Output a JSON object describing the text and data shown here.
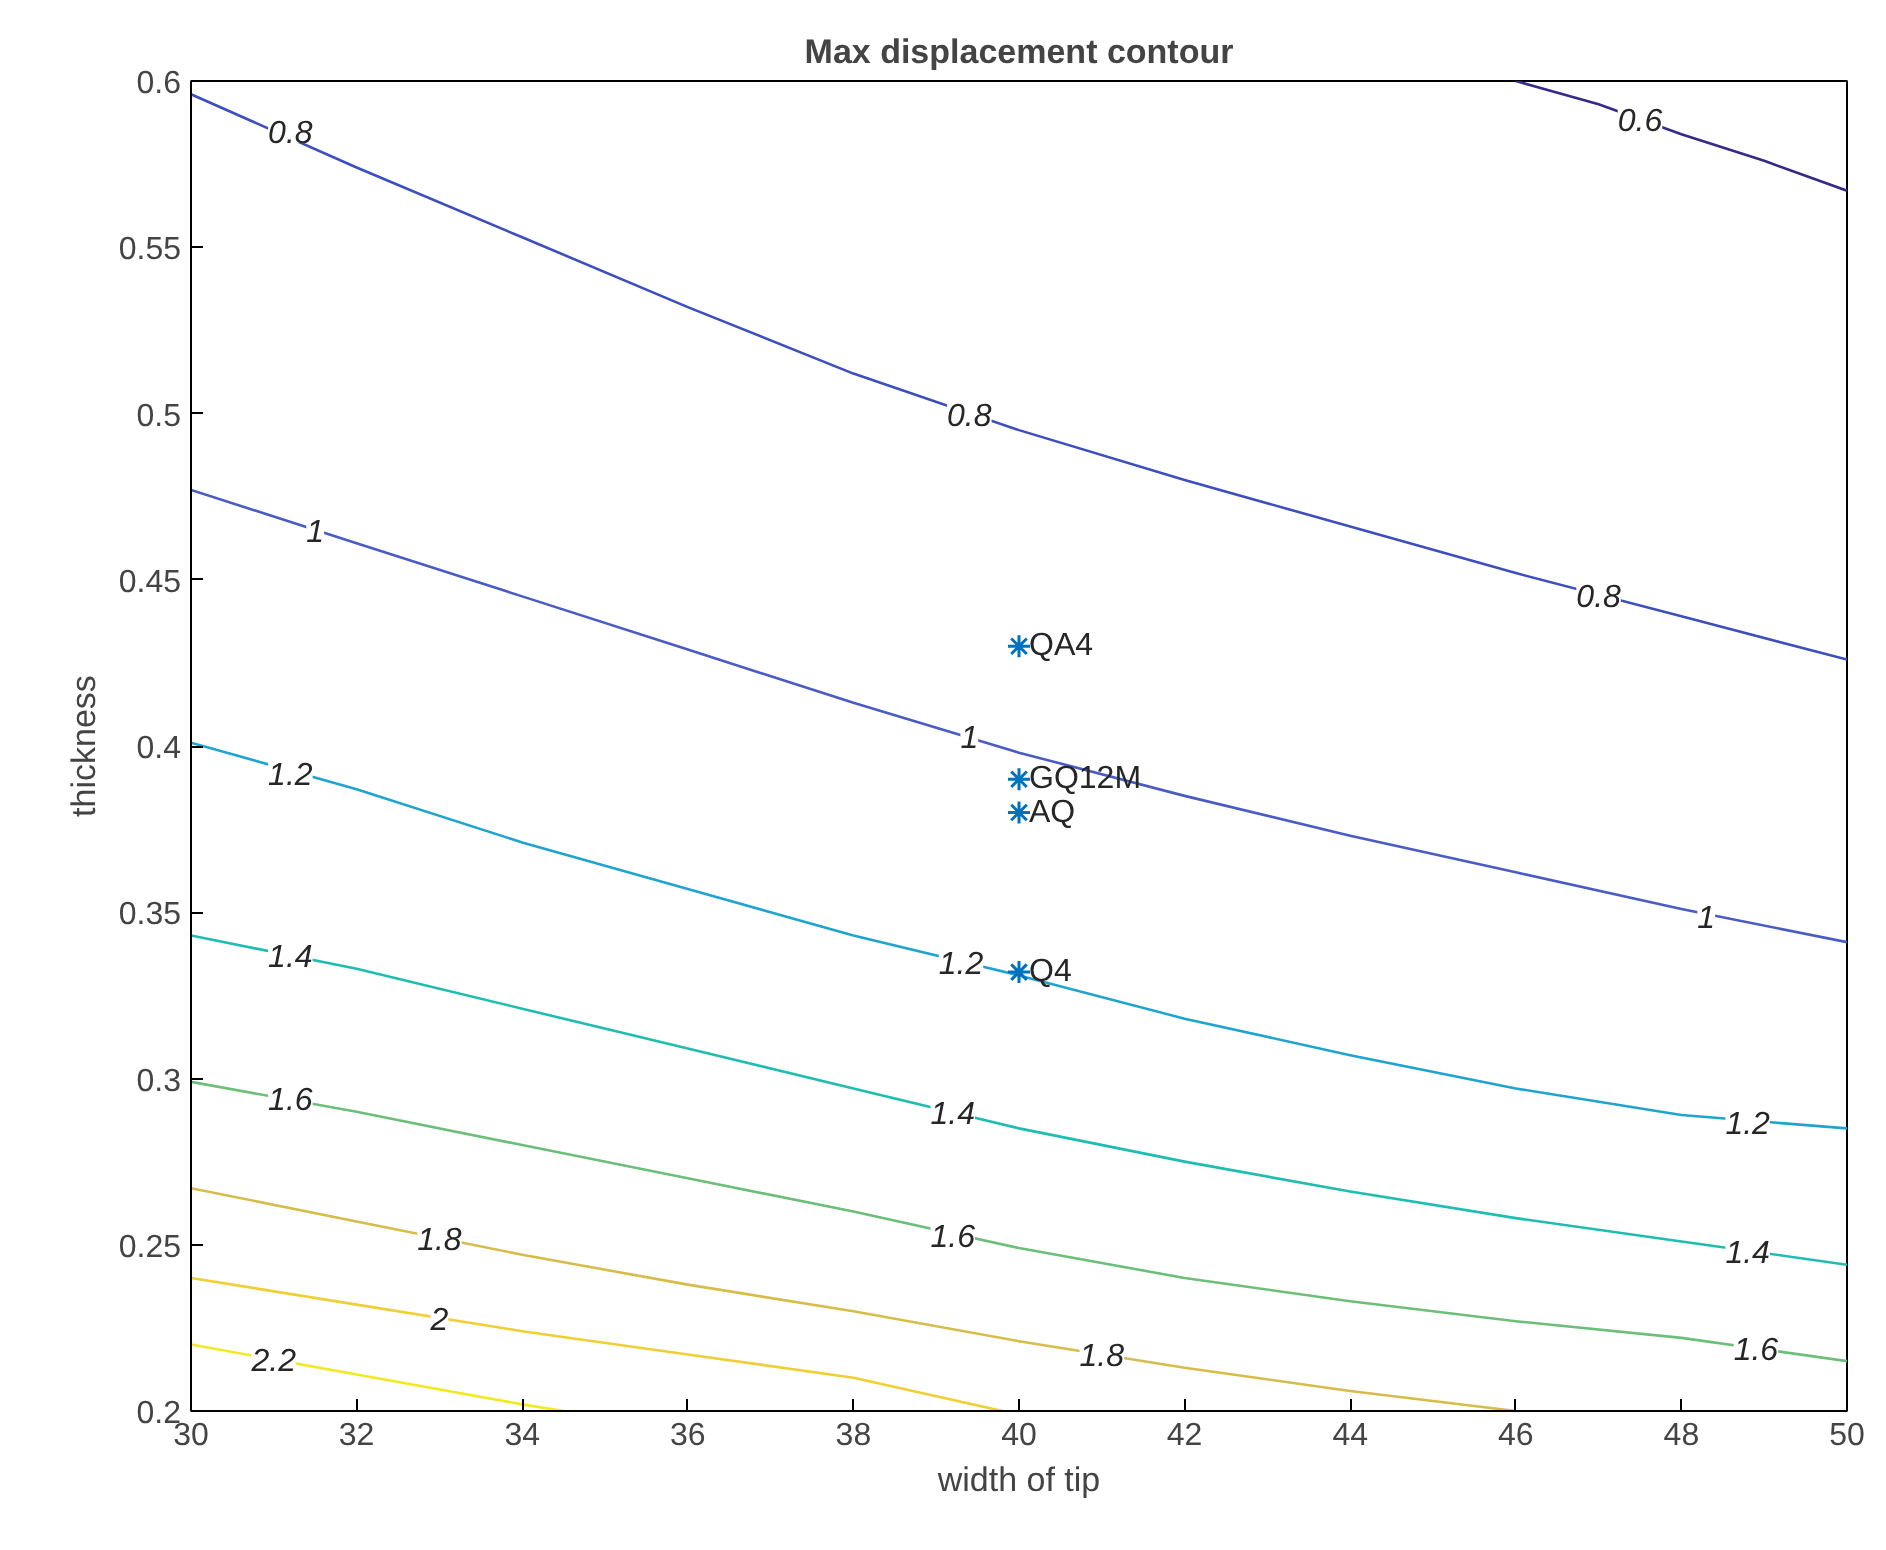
{
  "chart_data": {
    "type": "line",
    "title": "Max displacement contour",
    "xlabel": "width of tip",
    "ylabel": "thickness",
    "xlim": [
      30,
      50
    ],
    "ylim": [
      0.2,
      0.6
    ],
    "xticks": [
      30,
      32,
      34,
      36,
      38,
      40,
      42,
      44,
      46,
      48,
      50
    ],
    "yticks": [
      0.2,
      0.25,
      0.3,
      0.35,
      0.4,
      0.45,
      0.5,
      0.55,
      0.6
    ],
    "grid": false,
    "line_style": "solid",
    "series": [
      {
        "color": "#352a87",
        "x": [
          46,
          47,
          48,
          49,
          50
        ],
        "values": [
          0.6,
          0.593,
          0.584,
          0.576,
          0.567
        ]
      },
      {
        "color": "#3d4fbe",
        "x": [
          30,
          32,
          34,
          36,
          38,
          40,
          42,
          44,
          46,
          48,
          50
        ],
        "values": [
          0.596,
          0.574,
          0.553,
          0.532,
          0.512,
          0.495,
          0.48,
          0.466,
          0.452,
          0.439,
          0.426
        ]
      },
      {
        "color": "#4a5cc4",
        "x": [
          30,
          32,
          34,
          36,
          38,
          40,
          42,
          44,
          46,
          48,
          50
        ],
        "values": [
          0.477,
          0.461,
          0.445,
          0.429,
          0.413,
          0.398,
          0.385,
          0.373,
          0.362,
          0.351,
          0.341
        ]
      },
      {
        "color": "#1ea4cf",
        "x": [
          30,
          32,
          34,
          36,
          38,
          40,
          42,
          44,
          46,
          48,
          50
        ],
        "values": [
          0.401,
          0.387,
          0.371,
          0.357,
          0.343,
          0.331,
          0.318,
          0.307,
          0.297,
          0.289,
          0.285
        ]
      },
      {
        "color": "#1fbdb0",
        "x": [
          30,
          32,
          34,
          36,
          38,
          40,
          42,
          44,
          46,
          48,
          50
        ],
        "values": [
          0.343,
          0.333,
          0.321,
          0.309,
          0.297,
          0.285,
          0.275,
          0.266,
          0.258,
          0.251,
          0.244
        ]
      },
      {
        "color": "#6cbf78",
        "x": [
          30,
          32,
          34,
          36,
          38,
          40,
          42,
          44,
          46,
          48,
          50
        ],
        "values": [
          0.299,
          0.29,
          0.28,
          0.27,
          0.26,
          0.249,
          0.24,
          0.233,
          0.227,
          0.222,
          0.215
        ]
      },
      {
        "color": "#d6bd4a",
        "x": [
          30,
          32,
          34,
          36,
          38,
          40,
          42,
          44,
          46
        ],
        "values": [
          0.267,
          0.257,
          0.247,
          0.238,
          0.23,
          0.221,
          0.213,
          0.206,
          0.2
        ]
      },
      {
        "color": "#f0cf35",
        "x": [
          30,
          32,
          34,
          36,
          38,
          39.8
        ],
        "values": [
          0.24,
          0.232,
          0.224,
          0.217,
          0.21,
          0.2
        ]
      },
      {
        "color": "#f2ea20",
        "x": [
          30,
          32,
          34,
          34.5
        ],
        "values": [
          0.22,
          0.211,
          0.202,
          0.2
        ]
      },
      {
        "type": "scatter",
        "marker": "cross",
        "color": "#0072bd",
        "x": [
          40,
          40,
          40,
          40
        ],
        "values": [
          0.43,
          0.39,
          0.38,
          0.332
        ]
      }
    ],
    "annotations": [
      {
        "text": "0.6",
        "x": 47.5,
        "y": 0.5885
      },
      {
        "text": "0.8",
        "x": 31.2,
        "y": 0.585
      },
      {
        "text": "0.8",
        "x": 39.4,
        "y": 0.5
      },
      {
        "text": "0.8",
        "x": 47,
        "y": 0.4455
      },
      {
        "text": "1",
        "x": 31.5,
        "y": 0.465
      },
      {
        "text": "1",
        "x": 39.4,
        "y": 0.403
      },
      {
        "text": "1",
        "x": 48.3,
        "y": 0.349
      },
      {
        "text": "1.2",
        "x": 31.2,
        "y": 0.392
      },
      {
        "text": "1.2",
        "x": 39.3,
        "y": 0.335
      },
      {
        "text": "1.2",
        "x": 48.8,
        "y": 0.287
      },
      {
        "text": "1.4",
        "x": 31.2,
        "y": 0.337
      },
      {
        "text": "1.4",
        "x": 39.2,
        "y": 0.29
      },
      {
        "text": "1.4",
        "x": 48.8,
        "y": 0.248
      },
      {
        "text": "1.6",
        "x": 31.2,
        "y": 0.294
      },
      {
        "text": "1.6",
        "x": 39.2,
        "y": 0.253
      },
      {
        "text": "1.6",
        "x": 48.9,
        "y": 0.219
      },
      {
        "text": "1.8",
        "x": 33,
        "y": 0.252
      },
      {
        "text": "1.8",
        "x": 41,
        "y": 0.217
      },
      {
        "text": "2",
        "x": 33,
        "y": 0.228
      },
      {
        "text": "2.2",
        "x": 31,
        "y": 0.2155
      },
      {
        "text": "QA4",
        "x": 40,
        "y": 0.43
      },
      {
        "text": "GQ12M",
        "x": 40,
        "y": 0.39
      },
      {
        "text": "AQ",
        "x": 40,
        "y": 0.38
      },
      {
        "text": "Q4",
        "x": 40,
        "y": 0.332
      }
    ]
  }
}
